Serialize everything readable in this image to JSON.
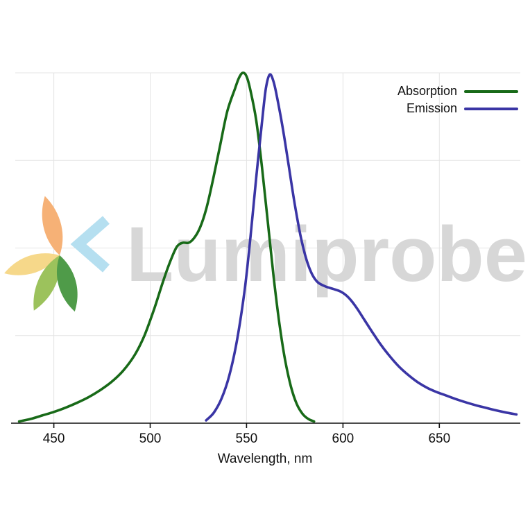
{
  "watermark": {
    "text": "Lumiprobe",
    "text_color": "#d7d7d7",
    "logo_colors": {
      "orange": "#f6b176",
      "yellow": "#f6d88a",
      "light_green": "#9cc25c",
      "dark_green": "#4f9b49",
      "blue": "#b5dff0"
    }
  },
  "chart_data": {
    "type": "line",
    "title": "",
    "xlabel": "Wavelength, nm",
    "ylabel": "",
    "xlim": [
      430,
      692
    ],
    "ylim": [
      0,
      1.05
    ],
    "x_ticks": [
      450,
      500,
      550,
      600,
      650
    ],
    "y_gridlines": [
      0.25,
      0.5,
      0.75,
      1.0
    ],
    "grid": true,
    "legend_position": "top-right",
    "series": [
      {
        "name": "Absorption",
        "color": "#186a18",
        "peak_nm": 548,
        "points": [
          [
            432,
            0.005
          ],
          [
            438,
            0.012
          ],
          [
            444,
            0.022
          ],
          [
            450,
            0.032
          ],
          [
            456,
            0.044
          ],
          [
            462,
            0.058
          ],
          [
            468,
            0.074
          ],
          [
            474,
            0.094
          ],
          [
            480,
            0.118
          ],
          [
            486,
            0.15
          ],
          [
            492,
            0.195
          ],
          [
            497,
            0.25
          ],
          [
            502,
            0.325
          ],
          [
            507,
            0.41
          ],
          [
            511,
            0.47
          ],
          [
            514,
            0.505
          ],
          [
            517,
            0.515
          ],
          [
            520,
            0.515
          ],
          [
            523,
            0.53
          ],
          [
            526,
            0.56
          ],
          [
            529,
            0.61
          ],
          [
            532,
            0.68
          ],
          [
            536,
            0.785
          ],
          [
            540,
            0.89
          ],
          [
            544,
            0.955
          ],
          [
            546,
            0.985
          ],
          [
            548,
            1.0
          ],
          [
            550,
            0.99
          ],
          [
            552,
            0.95
          ],
          [
            555,
            0.865
          ],
          [
            558,
            0.73
          ],
          [
            561,
            0.575
          ],
          [
            564,
            0.42
          ],
          [
            567,
            0.285
          ],
          [
            570,
            0.18
          ],
          [
            573,
            0.105
          ],
          [
            576,
            0.055
          ],
          [
            579,
            0.027
          ],
          [
            582,
            0.012
          ],
          [
            585,
            0.005
          ]
        ]
      },
      {
        "name": "Emission",
        "color": "#3a35a5",
        "peak_nm": 561,
        "points": [
          [
            529,
            0.008
          ],
          [
            533,
            0.03
          ],
          [
            537,
            0.07
          ],
          [
            541,
            0.135
          ],
          [
            545,
            0.235
          ],
          [
            549,
            0.38
          ],
          [
            552,
            0.53
          ],
          [
            555,
            0.7
          ],
          [
            558,
            0.86
          ],
          [
            560,
            0.955
          ],
          [
            562,
            0.995
          ],
          [
            564,
            0.975
          ],
          [
            566,
            0.925
          ],
          [
            569,
            0.835
          ],
          [
            572,
            0.73
          ],
          [
            575,
            0.625
          ],
          [
            578,
            0.535
          ],
          [
            581,
            0.468
          ],
          [
            584,
            0.425
          ],
          [
            587,
            0.402
          ],
          [
            591,
            0.39
          ],
          [
            595,
            0.383
          ],
          [
            599,
            0.375
          ],
          [
            603,
            0.358
          ],
          [
            607,
            0.33
          ],
          [
            611,
            0.296
          ],
          [
            615,
            0.262
          ],
          [
            619,
            0.229
          ],
          [
            624,
            0.193
          ],
          [
            629,
            0.162
          ],
          [
            634,
            0.137
          ],
          [
            639,
            0.116
          ],
          [
            644,
            0.1
          ],
          [
            649,
            0.088
          ],
          [
            654,
            0.078
          ],
          [
            659,
            0.068
          ],
          [
            664,
            0.059
          ],
          [
            669,
            0.051
          ],
          [
            674,
            0.044
          ],
          [
            679,
            0.037
          ],
          [
            684,
            0.031
          ],
          [
            690,
            0.025
          ]
        ]
      }
    ]
  }
}
